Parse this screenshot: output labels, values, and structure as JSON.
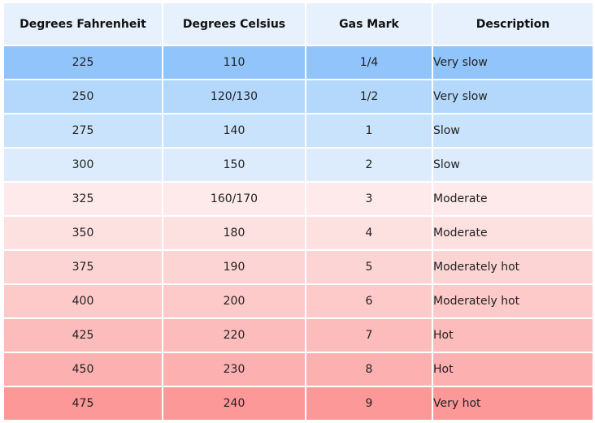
{
  "table": {
    "headers": [
      "Degrees Fahrenheit",
      "Degrees Celsius",
      "Gas Mark",
      "Description"
    ],
    "rows": [
      {
        "f": "225",
        "c": "110",
        "gas": "1/4",
        "desc": "Very slow",
        "bg": "#90c4fb"
      },
      {
        "f": "250",
        "c": "120/130",
        "gas": "1/2",
        "desc": "Very slow",
        "bg": "#b3d8fc"
      },
      {
        "f": "275",
        "c": "140",
        "gas": "1",
        "desc": "Slow",
        "bg": "#c9e3fc"
      },
      {
        "f": "300",
        "c": "150",
        "gas": "2",
        "desc": "Slow",
        "bg": "#dcecfd"
      },
      {
        "f": "325",
        "c": "160/170",
        "gas": "3",
        "desc": "Moderate",
        "bg": "#feeaea"
      },
      {
        "f": "350",
        "c": "180",
        "gas": "4",
        "desc": "Moderate",
        "bg": "#fde0e0"
      },
      {
        "f": "375",
        "c": "190",
        "gas": "5",
        "desc": "Moderately hot",
        "bg": "#fdd4d4"
      },
      {
        "f": "400",
        "c": "200",
        "gas": "6",
        "desc": "Moderately hot",
        "bg": "#fdc9c9"
      },
      {
        "f": "425",
        "c": "220",
        "gas": "7",
        "desc": "Hot",
        "bg": "#fdbcbc"
      },
      {
        "f": "450",
        "c": "230",
        "gas": "8",
        "desc": "Hot",
        "bg": "#fdb0b0"
      },
      {
        "f": "475",
        "c": "240",
        "gas": "9",
        "desc": "Very hot",
        "bg": "#fd9898"
      }
    ]
  }
}
